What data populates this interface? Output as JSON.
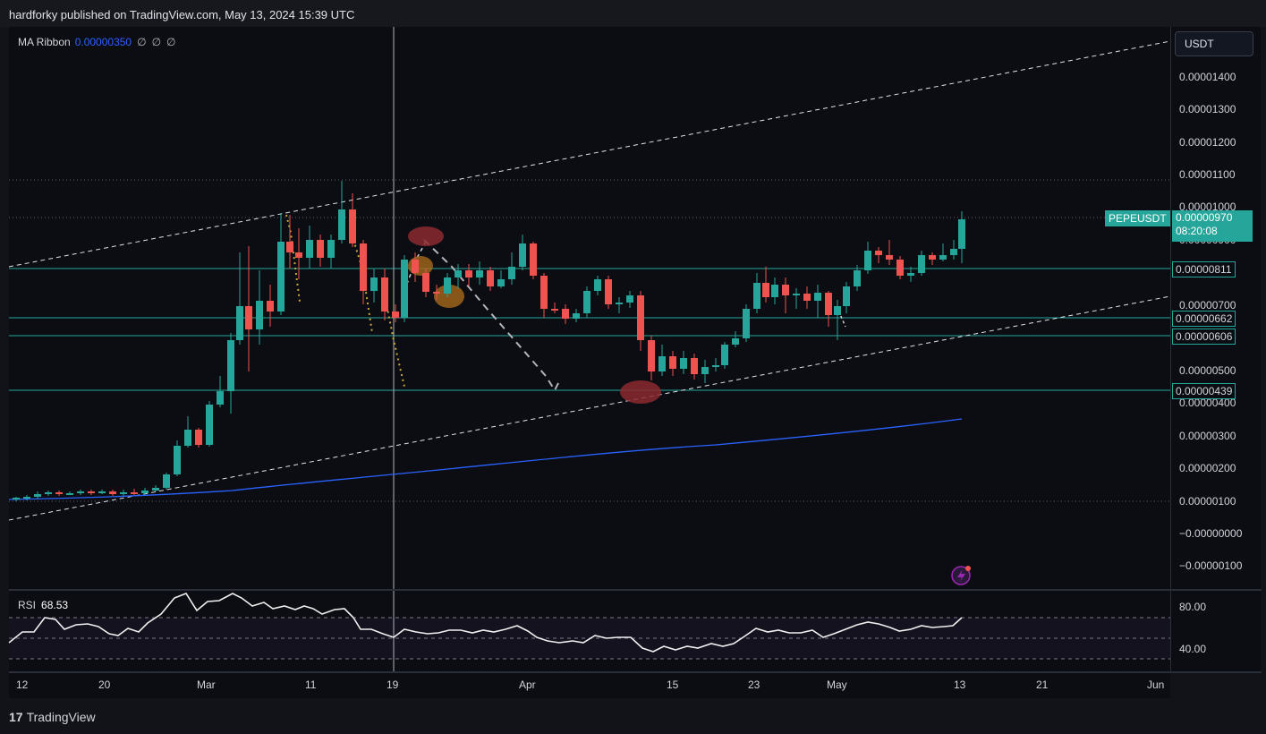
{
  "header": {
    "title": "hardforky published on TradingView.com, May 13, 2024 15:39 UTC"
  },
  "indicator": {
    "name": "MA Ribbon",
    "value": "0.00000350",
    "extras": [
      "∅",
      "∅",
      "∅"
    ]
  },
  "currency_button": "USDT",
  "price_axis": {
    "ticks": [
      "0.00001400",
      "0.00001300",
      "0.00001200",
      "0.00001100",
      "0.00001000",
      "0.00000900",
      "0.00000700",
      "0.00000500",
      "0.00000400",
      "0.00000300",
      "0.00000200",
      "0.00000100",
      "−0.00000000",
      "−0.00000100"
    ]
  },
  "symbol_tag": {
    "symbol": "PEPEUSDT",
    "price": "0.00000970",
    "countdown": "08:20:08"
  },
  "level_tags": [
    "0.00000811",
    "0.00000662",
    "0.00000606",
    "0.00000439"
  ],
  "rsi": {
    "label": "RSI",
    "value": "68.53",
    "ticks": [
      "80.00",
      "40.00"
    ]
  },
  "time_axis": [
    "12",
    "20",
    "Mar",
    "11",
    "19",
    "Apr",
    "15",
    "23",
    "May",
    "13",
    "21",
    "Jun"
  ],
  "footer": {
    "brand": "TradingView",
    "brand_mark": "17"
  },
  "colors": {
    "up": "#26a69a",
    "down": "#ef5350",
    "ma": "#2962ff",
    "background": "#0c0d12"
  },
  "icons": {
    "flash": "lightning-icon"
  }
}
